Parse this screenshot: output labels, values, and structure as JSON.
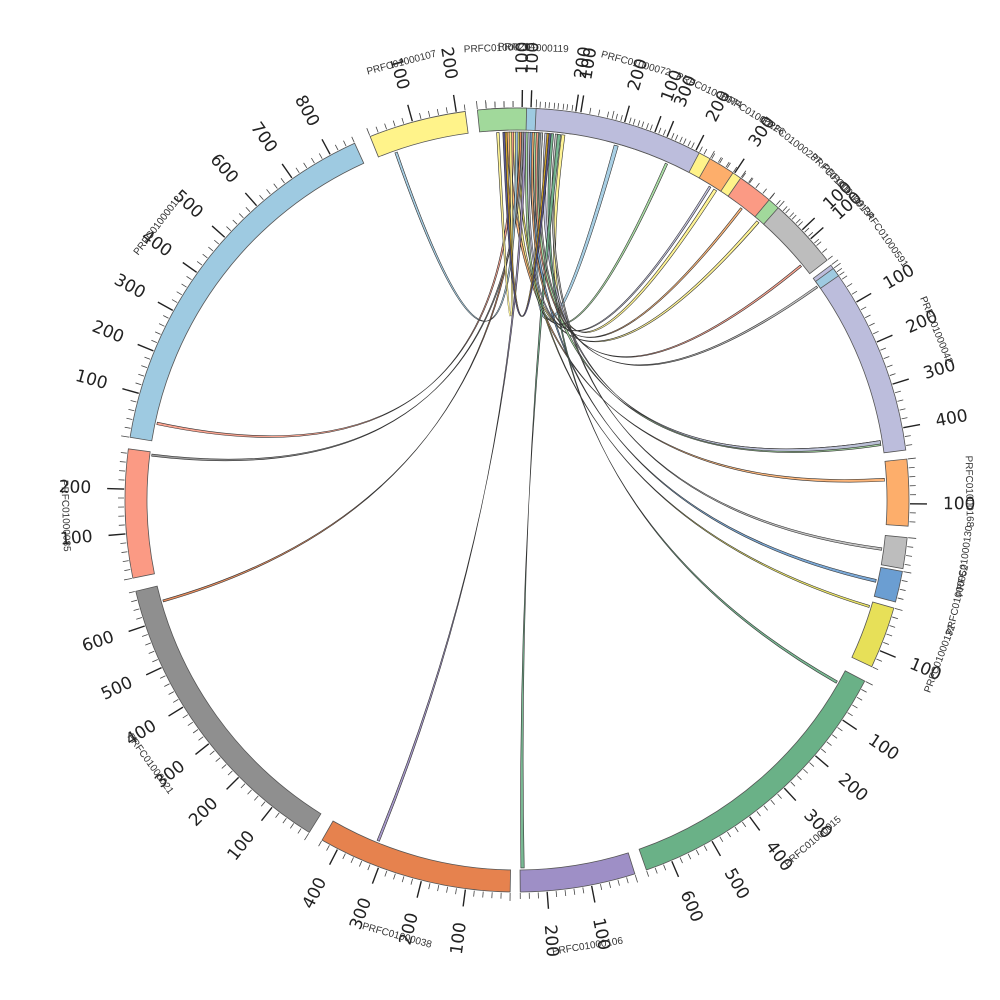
{
  "chart_data": {
    "type": "chord",
    "title": "",
    "segments": [
      {
        "name": "PRFC01000119",
        "start_deg": -4.5,
        "length": 200,
        "color": "#9ecae1"
      },
      {
        "name": "PRFC01000074",
        "start_deg": 14.0,
        "length": 340,
        "color": "#fff38a"
      },
      {
        "name": "PRFC01000149",
        "start_deg": 40.0,
        "length": 155,
        "color": "#a1d99b"
      },
      {
        "name": "PRFC01000042",
        "start_deg": 53.2,
        "length": 450,
        "color": "#bcbddc"
      },
      {
        "name": "PRFC01000168",
        "start_deg": 84.0,
        "length": 150,
        "color": "#fdae6b"
      },
      {
        "name": "PRFC01000130",
        "start_deg": 95.5,
        "length": 70,
        "color": "#bdbdbd"
      },
      {
        "name": "PRFC01000052",
        "start_deg": 100.5,
        "length": 70,
        "color": "#6b9ed2"
      },
      {
        "name": "PRFC01000132",
        "start_deg": 106.0,
        "length": 140,
        "color": "#e7e058"
      },
      {
        "name": "PRFC01000015",
        "start_deg": 117.5,
        "length": 660,
        "color": "#6ab187"
      },
      {
        "name": "PRFC01000106",
        "start_deg": 162.5,
        "length": 260,
        "color": "#9e8fc6"
      },
      {
        "name": "PRFC01000038",
        "start_deg": 181.0,
        "length": 440,
        "color": "#e6824e"
      },
      {
        "name": "PRFC01000021",
        "start_deg": 212.0,
        "length": 680,
        "color": "#8f8f8f"
      },
      {
        "name": "PRFC01000085",
        "start_deg": 258.5,
        "length": 290,
        "color": "#fb9a84"
      },
      {
        "name": "PRFC01000012",
        "start_deg": 279.2,
        "length": 860,
        "color": "#9ecae1"
      },
      {
        "name": "PRFC01000107",
        "start_deg": 338.0,
        "length": 220,
        "color": "#fff38a"
      },
      {
        "name": "PRFC01000204",
        "start_deg": 354.2,
        "length": 110,
        "color": "#a1d99b"
      },
      {
        "name": "PRFC01000072",
        "start_deg": 362.8,
        "length": 380,
        "color": "#bcbddc"
      },
      {
        "name": "PRFC01000226",
        "start_deg": 389.5,
        "length": 60,
        "color": "#fdae6b"
      },
      {
        "name": "PRFC01000237",
        "start_deg": 394.8,
        "length": 80,
        "color": "#fb9a84"
      },
      {
        "name": "PRFC01000134",
        "start_deg": 401.8,
        "length": 160,
        "color": "#bdbdbd"
      },
      {
        "name": "PRFC01000591",
        "start_deg": 413.8,
        "length": 20,
        "color": "#9ecae1"
      }
    ],
    "links": [
      {
        "from": "PRFC01000119",
        "from_pos": 120,
        "to": "PRFC01000074",
        "to_pos": 20,
        "width": 10,
        "color": "#9ecae1"
      },
      {
        "from": "PRFC01000074",
        "from_pos": 280,
        "to": "PRFC01000119",
        "to_pos": 175,
        "width": 8,
        "color": "#fff38a"
      },
      {
        "from": "PRFC01000149",
        "from_pos": 10,
        "to": "PRFC01000119",
        "to_pos": 60,
        "width": 7,
        "color": "#fff38a"
      },
      {
        "from": "PRFC01000042",
        "from_pos": 420,
        "to": "PRFC01000119",
        "to_pos": 110,
        "width": 12,
        "color": "#a1d99b"
      },
      {
        "from": "PRFC01000042",
        "from_pos": 420,
        "to": "PRFC01000119",
        "to_pos": 135,
        "width": 8,
        "color": "#bcbddc"
      },
      {
        "from": "PRFC01000168",
        "from_pos": 40,
        "to": "PRFC01000119",
        "to_pos": 45,
        "width": 7,
        "color": "#fdae6b"
      },
      {
        "from": "PRFC01000130",
        "from_pos": 30,
        "to": "PRFC01000119",
        "to_pos": 160,
        "width": 6,
        "color": "#bdbdbd"
      },
      {
        "from": "PRFC01000052",
        "from_pos": 30,
        "to": "PRFC01000119",
        "to_pos": 100,
        "width": 7,
        "color": "#6b9ed2"
      },
      {
        "from": "PRFC01000132",
        "from_pos": 10,
        "to": "PRFC01000119",
        "to_pos": 70,
        "width": 5,
        "color": "#e7e058"
      },
      {
        "from": "PRFC01000015",
        "from_pos": 30,
        "to": "PRFC01000119",
        "to_pos": 150,
        "width": 6,
        "color": "#6ab187"
      },
      {
        "from": "PRFC01000106",
        "from_pos": 250,
        "to": "PRFC01000119",
        "to_pos": 165,
        "width": 8,
        "color": "#6ab187"
      },
      {
        "from": "PRFC01000038",
        "from_pos": 320,
        "to": "PRFC01000119",
        "to_pos": 85,
        "width": 6,
        "color": "#9e8fc6"
      },
      {
        "from": "PRFC01000021",
        "from_pos": 640,
        "to": "PRFC01000119",
        "to_pos": 75,
        "width": 5,
        "color": "#e6824e"
      },
      {
        "from": "PRFC01000085",
        "from_pos": 280,
        "to": "PRFC01000119",
        "to_pos": 80,
        "width": 5,
        "color": "#8f8f8f"
      },
      {
        "from": "PRFC01000012",
        "from_pos": 40,
        "to": "PRFC01000119",
        "to_pos": 55,
        "width": 6,
        "color": "#fb9a84"
      },
      {
        "from": "PRFC01000107",
        "from_pos": 40,
        "to": "PRFC01000119",
        "to_pos": 65,
        "width": 6,
        "color": "#9ecae1"
      },
      {
        "from": "PRFC01000204",
        "from_pos": 40,
        "to": "PRFC01000119",
        "to_pos": 50,
        "width": 6,
        "color": "#fff38a"
      },
      {
        "from": "PRFC01000072",
        "from_pos": 320,
        "to": "PRFC01000119",
        "to_pos": 90,
        "width": 6,
        "color": "#a1d99b"
      },
      {
        "from": "PRFC01000226",
        "from_pos": 30,
        "to": "PRFC01000119",
        "to_pos": 95,
        "width": 5,
        "color": "#bcbddc"
      },
      {
        "from": "PRFC01000237",
        "from_pos": 40,
        "to": "PRFC01000119",
        "to_pos": 105,
        "width": 5,
        "color": "#fdae6b"
      },
      {
        "from": "PRFC01000134",
        "from_pos": 130,
        "to": "PRFC01000119",
        "to_pos": 115,
        "width": 5,
        "color": "#fb9a84"
      },
      {
        "from": "PRFC01000591",
        "from_pos": 10,
        "to": "PRFC01000119",
        "to_pos": 125,
        "width": 5,
        "color": "#bdbdbd"
      },
      {
        "from": "PRFC01000119",
        "from_pos": 40,
        "to": "PRFC01000119",
        "to_pos": 140,
        "width": 5,
        "color": "#d4a017"
      },
      {
        "from": "PRFC01000119",
        "from_pos": 35,
        "to": "PRFC01000119",
        "to_pos": 145,
        "width": 5,
        "color": "#4e4a8f"
      }
    ],
    "tick_major_step": 100
  }
}
